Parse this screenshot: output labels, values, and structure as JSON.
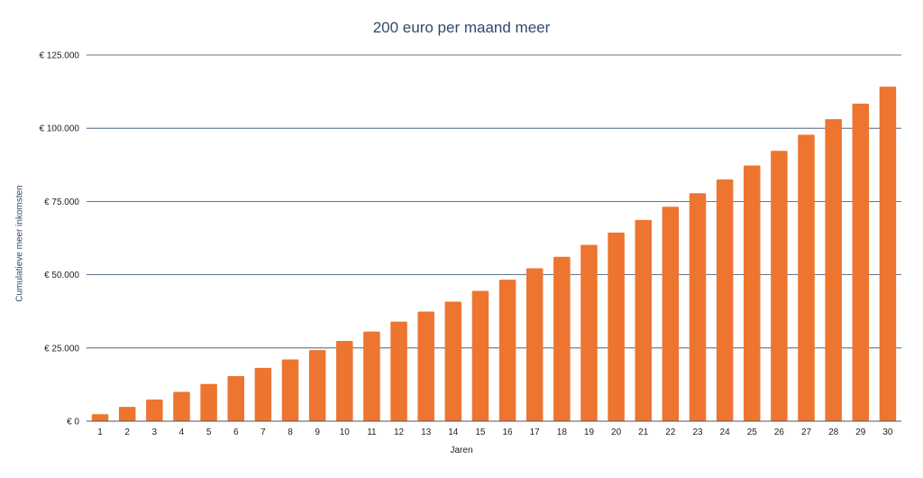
{
  "chart_data": {
    "type": "bar",
    "title": "200 euro per maand meer",
    "xlabel": "Jaren",
    "ylabel": "Cumulatieve meer inkomsten",
    "categories": [
      "1",
      "2",
      "3",
      "4",
      "5",
      "6",
      "7",
      "8",
      "9",
      "10",
      "11",
      "12",
      "13",
      "14",
      "15",
      "16",
      "17",
      "18",
      "19",
      "20",
      "21",
      "22",
      "23",
      "24",
      "25",
      "26",
      "27",
      "28",
      "29",
      "30"
    ],
    "values": [
      2400,
      4900,
      7400,
      10000,
      12700,
      15400,
      18200,
      21100,
      24300,
      27400,
      30600,
      34000,
      37400,
      40800,
      44500,
      48300,
      52200,
      56100,
      60200,
      64400,
      68700,
      73200,
      77800,
      82500,
      87300,
      92300,
      97800,
      103100,
      108400,
      114200
    ],
    "ylim": [
      0,
      125000
    ],
    "yticks": [
      0,
      25000,
      50000,
      75000,
      100000,
      125000
    ],
    "ytick_labels": [
      "€ 0",
      "€ 25.000",
      "€ 50.000",
      "€ 75.000",
      "€ 100.000",
      "€ 125.000"
    ],
    "grid": true,
    "legend": "none",
    "bar_color": "#ed7530",
    "grid_color": "#2f4a6e"
  }
}
